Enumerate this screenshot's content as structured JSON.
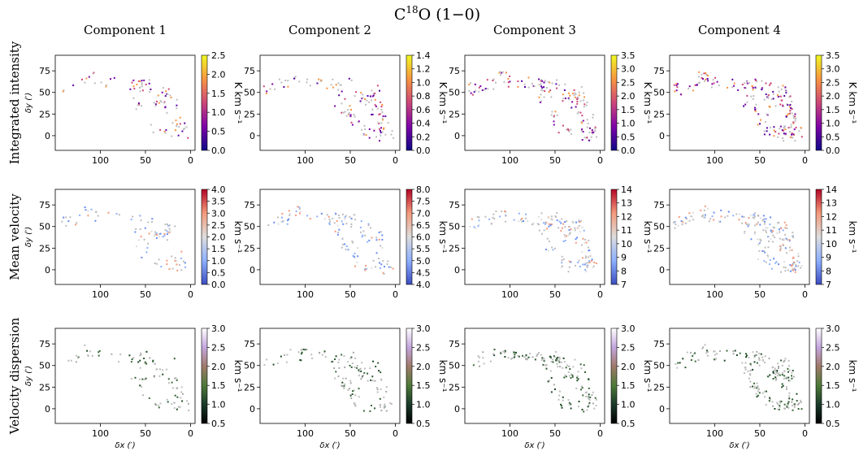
{
  "chart_data": {
    "type": "heatmap",
    "title": "C",
    "title_sup": "18",
    "title_rest": "O (1−0)",
    "columns": [
      "Component 1",
      "Component 2",
      "Component 3",
      "Component 4"
    ],
    "rows": [
      "Integrated intensity",
      "Mean velocity",
      "Velocity dispersion"
    ],
    "xlabel": "δx (′)",
    "ylabel": "δy (′)",
    "xlim": [
      150,
      -5
    ],
    "ylim": [
      -17,
      93
    ],
    "x_ticks": [
      100,
      50,
      0
    ],
    "y_ticks": [
      0,
      25,
      50,
      75
    ],
    "colorbar_labels": [
      "K km s⁻¹",
      "km s⁻¹",
      "km s⁻¹"
    ],
    "colormaps": [
      "plasma",
      "coolwarm",
      "cubehelix"
    ],
    "colorbars": [
      [
        {
          "vmin": 0,
          "vmax": 2.5,
          "ticks": [
            "0.0",
            "0.5",
            "1.0",
            "1.5",
            "2.0",
            "2.5"
          ]
        },
        {
          "vmin": 0,
          "vmax": 1.4,
          "ticks": [
            "0.0",
            "0.2",
            "0.4",
            "0.6",
            "0.8",
            "1.0",
            "1.2",
            "1.4"
          ]
        },
        {
          "vmin": 0,
          "vmax": 3.5,
          "ticks": [
            "0.0",
            "0.5",
            "1.0",
            "1.5",
            "2.0",
            "2.5",
            "3.0",
            "3.5"
          ]
        },
        {
          "vmin": 0,
          "vmax": 3.5,
          "ticks": [
            "0.0",
            "0.5",
            "1.0",
            "1.5",
            "2.0",
            "2.5",
            "3.0",
            "3.5"
          ]
        }
      ],
      [
        {
          "vmin": 0,
          "vmax": 4.0,
          "ticks": [
            "0.0",
            "0.5",
            "1.0",
            "1.5",
            "2.0",
            "2.5",
            "3.0",
            "3.5",
            "4.0"
          ]
        },
        {
          "vmin": 4.0,
          "vmax": 8.0,
          "ticks": [
            "4.0",
            "4.5",
            "5.0",
            "5.5",
            "6.0",
            "6.5",
            "7.0",
            "7.5",
            "8.0"
          ]
        },
        {
          "vmin": 7,
          "vmax": 14,
          "ticks": [
            "7",
            "8",
            "9",
            "10",
            "11",
            "12",
            "13",
            "14"
          ]
        },
        {
          "vmin": 7,
          "vmax": 14,
          "ticks": [
            "7",
            "8",
            "9",
            "10",
            "11",
            "12",
            "13",
            "14"
          ]
        }
      ],
      [
        {
          "vmin": 0.5,
          "vmax": 3.0,
          "ticks": [
            "0.5",
            "1.0",
            "1.5",
            "2.0",
            "2.5",
            "3.0"
          ]
        },
        {
          "vmin": 0.5,
          "vmax": 3.0,
          "ticks": [
            "0.5",
            "1.0",
            "1.5",
            "2.0",
            "2.5",
            "3.0"
          ]
        },
        {
          "vmin": 0.5,
          "vmax": 3.0,
          "ticks": [
            "0.5",
            "1.0",
            "1.5",
            "2.0",
            "2.5",
            "3.0"
          ]
        },
        {
          "vmin": 0.5,
          "vmax": 3.0,
          "ticks": [
            "0.5",
            "1.0",
            "1.5",
            "2.0",
            "2.5",
            "3.0"
          ]
        }
      ]
    ],
    "grid": false
  }
}
